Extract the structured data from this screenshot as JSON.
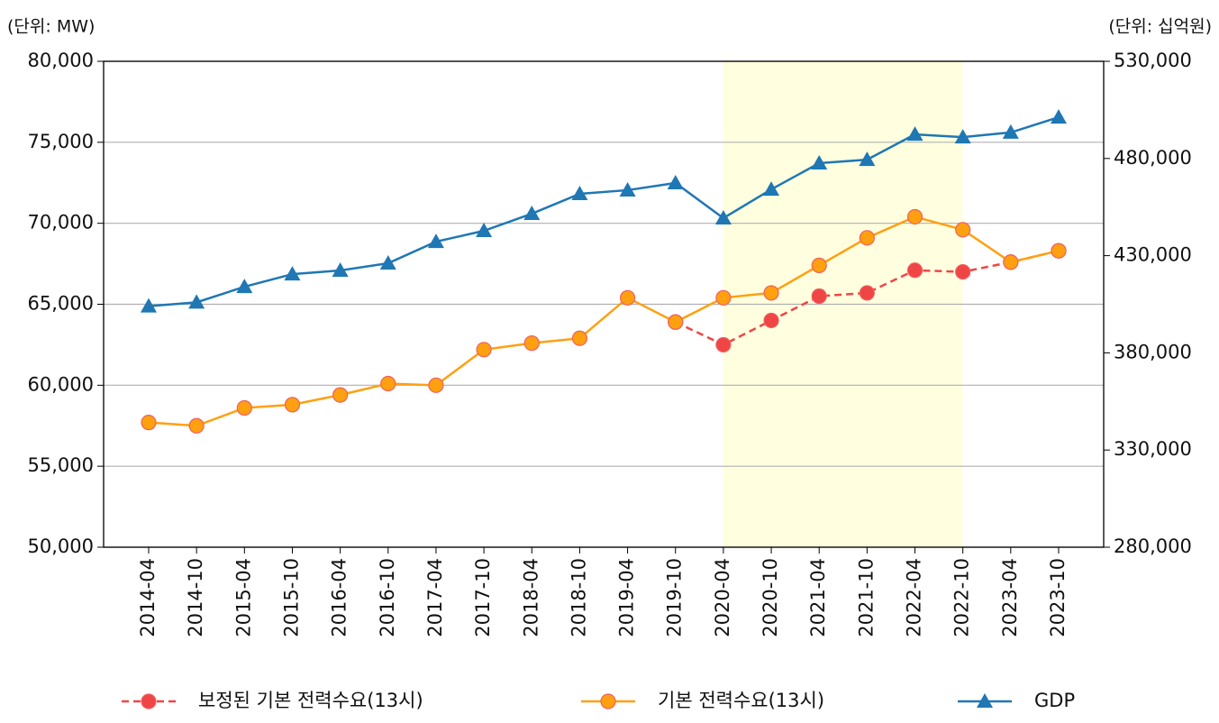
{
  "chart_data": {
    "type": "line",
    "y_unit_label": "(단위: MW)",
    "y2_unit_label": "(단위: 십억원)",
    "categories": [
      "2014-04",
      "2014-10",
      "2015-04",
      "2015-10",
      "2016-04",
      "2016-10",
      "2017-04",
      "2017-10",
      "2018-04",
      "2018-10",
      "2019-04",
      "2019-10",
      "2020-04",
      "2020-10",
      "2021-04",
      "2021-10",
      "2022-04",
      "2022-10",
      "2023-04",
      "2023-10"
    ],
    "shade": {
      "from": "2020-04",
      "to": "2022-10",
      "color": "#ffffe0"
    },
    "series": [
      {
        "name": "보정된 기본 전력수요(13시)",
        "color": "#f04545",
        "marker": "circle",
        "dashed": true,
        "axis": "y",
        "values": [
          null,
          null,
          null,
          null,
          null,
          null,
          null,
          null,
          null,
          null,
          null,
          63900,
          62500,
          64000,
          65500,
          65700,
          67100,
          67000,
          67600,
          68300
        ]
      },
      {
        "name": "기본 전력수요(13시)",
        "color": "#ffa010",
        "marker": "circle",
        "dashed": false,
        "axis": "y",
        "values": [
          57700,
          57500,
          58600,
          58800,
          59400,
          60100,
          60000,
          62200,
          62600,
          62900,
          65400,
          63900,
          65400,
          65700,
          67400,
          69100,
          70400,
          69600,
          67600,
          68300
        ]
      },
      {
        "name": "GDP",
        "color": "#1f77b4",
        "marker": "triangle",
        "dashed": false,
        "axis": "y2",
        "values": [
          404000,
          406000,
          414000,
          420500,
          422400,
          426100,
          437200,
          442800,
          451600,
          461800,
          463700,
          467400,
          449300,
          464100,
          477600,
          479400,
          492400,
          491000,
          493400,
          501200
        ]
      }
    ],
    "ylim": [
      50000,
      80000
    ],
    "yticks": [
      {
        "value": 50000,
        "label": "50,000"
      },
      {
        "value": 55000,
        "label": "55,000"
      },
      {
        "value": 60000,
        "label": "60,000"
      },
      {
        "value": 65000,
        "label": "65,000"
      },
      {
        "value": 70000,
        "label": "70,000"
      },
      {
        "value": 75000,
        "label": "75,000"
      },
      {
        "value": 80000,
        "label": "80,000"
      }
    ],
    "y2lim": [
      280000,
      530000
    ],
    "y2ticks": [
      {
        "value": 280000,
        "label": "280,000"
      },
      {
        "value": 330000,
        "label": "330,000"
      },
      {
        "value": 380000,
        "label": "380,000"
      },
      {
        "value": 430000,
        "label": "430,000"
      },
      {
        "value": 480000,
        "label": "480,000"
      },
      {
        "value": 530000,
        "label": "530,000"
      }
    ],
    "grid": true,
    "legend": "bottom"
  }
}
